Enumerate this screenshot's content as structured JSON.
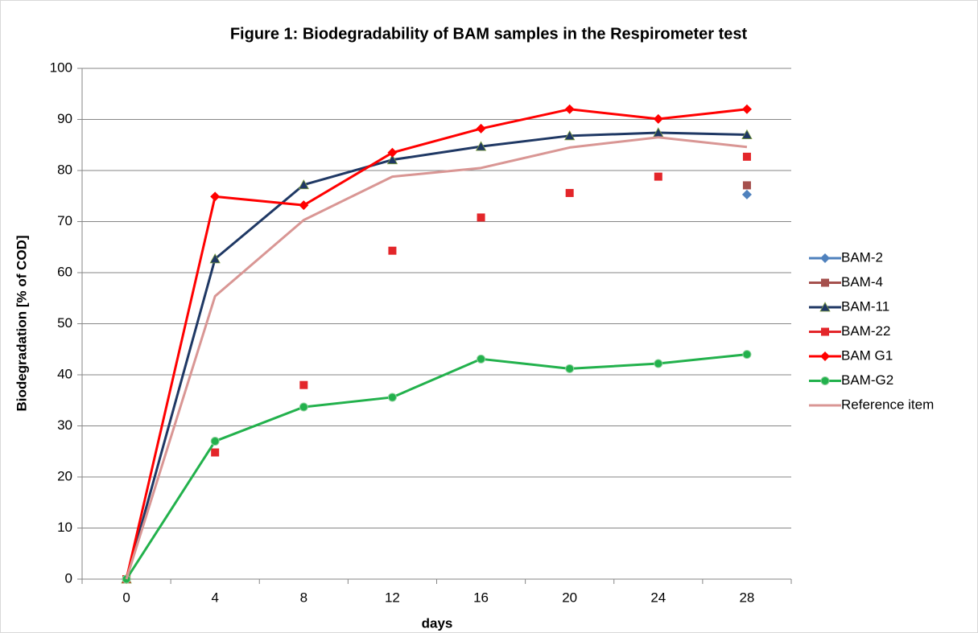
{
  "chart_data": {
    "type": "line",
    "title": "Figure 1: Biodegradability of BAM samples in the Respirometer test",
    "x_label": "days",
    "y_label": "Biodegradation [% of COD]",
    "categories": [
      0,
      4,
      8,
      12,
      16,
      20,
      24,
      28
    ],
    "ylim": [
      0,
      100
    ],
    "yticks": [
      0,
      10,
      20,
      30,
      40,
      50,
      60,
      70,
      80,
      90,
      100
    ],
    "grid": true,
    "legend": "right",
    "series": [
      {
        "name": "BAM-2",
        "color": "#4f81bd",
        "marker": "diamond",
        "values": [
          0,
          null,
          null,
          null,
          null,
          null,
          null,
          75.3
        ]
      },
      {
        "name": "BAM-4",
        "color": "#a5504d",
        "marker": "square",
        "values": [
          0,
          null,
          null,
          null,
          null,
          null,
          null,
          77.1
        ]
      },
      {
        "name": "BAM-11",
        "color": "#1f3864",
        "marker": "triangle",
        "values": [
          0,
          62.7,
          77.2,
          82.1,
          84.7,
          86.8,
          87.4,
          87.0
        ]
      },
      {
        "name": "BAM-22",
        "color": "#e3262a",
        "marker": "square",
        "line": false,
        "values": [
          0,
          24.8,
          38.0,
          64.3,
          70.8,
          75.6,
          78.8,
          82.7
        ]
      },
      {
        "name": "BAM G1",
        "color": "#ff0000",
        "marker": "diamond",
        "values": [
          0,
          74.9,
          73.2,
          83.5,
          88.2,
          92.0,
          90.1,
          92.0
        ]
      },
      {
        "name": "BAM-G2",
        "color": "#22b14c",
        "marker": "circle",
        "values": [
          0,
          27.0,
          33.7,
          35.6,
          43.1,
          41.2,
          42.2,
          44.0
        ]
      },
      {
        "name": "Reference item",
        "color": "#d99694",
        "marker": "none",
        "values": [
          0,
          55.4,
          70.3,
          78.8,
          80.5,
          84.5,
          86.5,
          84.6
        ]
      }
    ]
  }
}
